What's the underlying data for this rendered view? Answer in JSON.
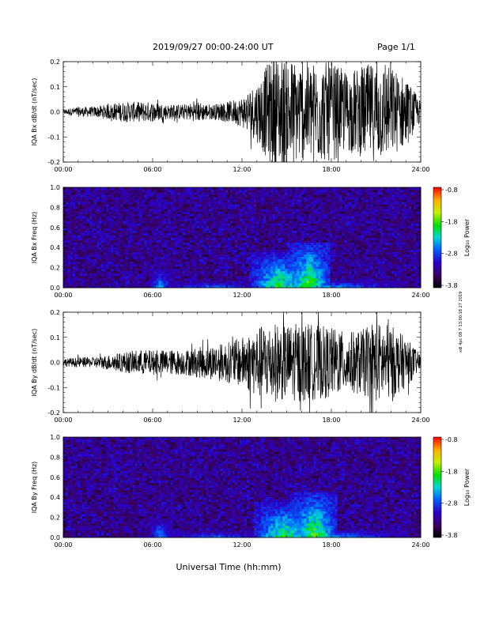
{
  "header": {
    "title": "2019/09/27   00:00-24:00 UT",
    "page": "Page 1/1"
  },
  "side_note": "xdl 4pc 08 7 13:00:18 27 2019",
  "xaxis_label": "Universal Time (hh:mm)",
  "chart_data": [
    {
      "type": "line",
      "title": "",
      "xlabel": "",
      "ylabel": "IQA Bx dB/dt (nT/sec)",
      "xlim": [
        0,
        24
      ],
      "xticks": [
        "00:00",
        "06:00",
        "12:00",
        "18:00",
        "24:00"
      ],
      "ylim": [
        -0.2,
        0.2
      ],
      "yticks": [
        "-0.2",
        "-0.1",
        "0.0",
        "0.1",
        "0.2"
      ],
      "series": [
        {
          "x": [
            0,
            1,
            2,
            3,
            4,
            5,
            6,
            7,
            8,
            9,
            10,
            11,
            12,
            13,
            14,
            15,
            16,
            17,
            18,
            19,
            20,
            21,
            22,
            23,
            24
          ],
          "values": [
            0.01,
            0.02,
            0.02,
            0.03,
            0.04,
            0.04,
            0.04,
            0.03,
            0.03,
            0.04,
            0.03,
            0.04,
            0.06,
            0.12,
            0.22,
            0.22,
            0.2,
            0.2,
            0.2,
            0.16,
            0.18,
            0.2,
            0.18,
            0.14,
            0.04
          ]
        }
      ],
      "note": "series values = approximate envelope amplitude |dB/dt| (nT/sec) per hour"
    },
    {
      "type": "heatmap",
      "title": "",
      "xlabel": "",
      "ylabel": "IQA Bx Freq (Hz)",
      "xlim": [
        0,
        24
      ],
      "xticks": [
        "00:00",
        "06:00",
        "12:00",
        "18:00",
        "24:00"
      ],
      "ylim": [
        0,
        1.0
      ],
      "yticks": [
        "0.0",
        "0.2",
        "0.4",
        "0.6",
        "0.8",
        "1.0"
      ],
      "colorbar": {
        "label": "Log₁₀ Power",
        "range": [
          -3.8,
          -0.8
        ],
        "ticks": [
          "-0.8",
          "-1.8",
          "-2.8",
          "-3.8"
        ]
      },
      "activity": [
        {
          "x": 6.5,
          "wx": 0.8,
          "fmax": 0.2,
          "level": 0.55
        },
        {
          "x": 14.5,
          "wx": 2.0,
          "fmax": 0.35,
          "level": 0.75
        },
        {
          "x": 16.5,
          "wx": 1.5,
          "fmax": 0.45,
          "level": 0.8
        },
        {
          "x": 10,
          "wx": 4.0,
          "fmax": 0.06,
          "level": 0.5
        },
        {
          "x": 18,
          "wx": 5.0,
          "fmax": 0.07,
          "level": 0.55
        }
      ]
    },
    {
      "type": "line",
      "title": "",
      "xlabel": "",
      "ylabel": "IQA By dB/dt (nT/sec)",
      "xlim": [
        0,
        24
      ],
      "xticks": [
        "00:00",
        "06:00",
        "12:00",
        "18:00",
        "24:00"
      ],
      "ylim": [
        -0.2,
        0.2
      ],
      "yticks": [
        "-0.2",
        "-0.1",
        "0.0",
        "0.1",
        "0.2"
      ],
      "series": [
        {
          "x": [
            0,
            1,
            2,
            3,
            4,
            5,
            6,
            7,
            8,
            9,
            10,
            11,
            12,
            13,
            14,
            15,
            16,
            17,
            18,
            19,
            20,
            21,
            22,
            23,
            24
          ],
          "values": [
            0.015,
            0.02,
            0.02,
            0.03,
            0.04,
            0.05,
            0.05,
            0.05,
            0.05,
            0.06,
            0.07,
            0.08,
            0.1,
            0.14,
            0.16,
            0.15,
            0.16,
            0.15,
            0.14,
            0.12,
            0.13,
            0.16,
            0.15,
            0.1,
            0.03
          ]
        }
      ],
      "note": "series values = approximate envelope amplitude |dB/dt| (nT/sec) per hour"
    },
    {
      "type": "heatmap",
      "title": "",
      "xlabel": "Universal Time (hh:mm)",
      "ylabel": "IQA By Freq (Hz)",
      "xlim": [
        0,
        24
      ],
      "xticks": [
        "00:00",
        "06:00",
        "12:00",
        "18:00",
        "24:00"
      ],
      "ylim": [
        0,
        1.0
      ],
      "yticks": [
        "0.0",
        "0.2",
        "0.4",
        "0.6",
        "0.8",
        "1.0"
      ],
      "colorbar": {
        "label": "Log₁₀ Power",
        "range": [
          -3.8,
          -0.8
        ],
        "ticks": [
          "-0.8",
          "-1.8",
          "-2.8",
          "-3.8"
        ]
      },
      "activity": [
        {
          "x": 6.5,
          "wx": 0.8,
          "fmax": 0.18,
          "level": 0.55
        },
        {
          "x": 14.8,
          "wx": 2.0,
          "fmax": 0.35,
          "level": 0.75
        },
        {
          "x": 16.8,
          "wx": 1.6,
          "fmax": 0.45,
          "level": 0.8
        },
        {
          "x": 10,
          "wx": 4.0,
          "fmax": 0.06,
          "level": 0.5
        },
        {
          "x": 18,
          "wx": 5.0,
          "fmax": 0.08,
          "level": 0.55
        }
      ]
    }
  ]
}
